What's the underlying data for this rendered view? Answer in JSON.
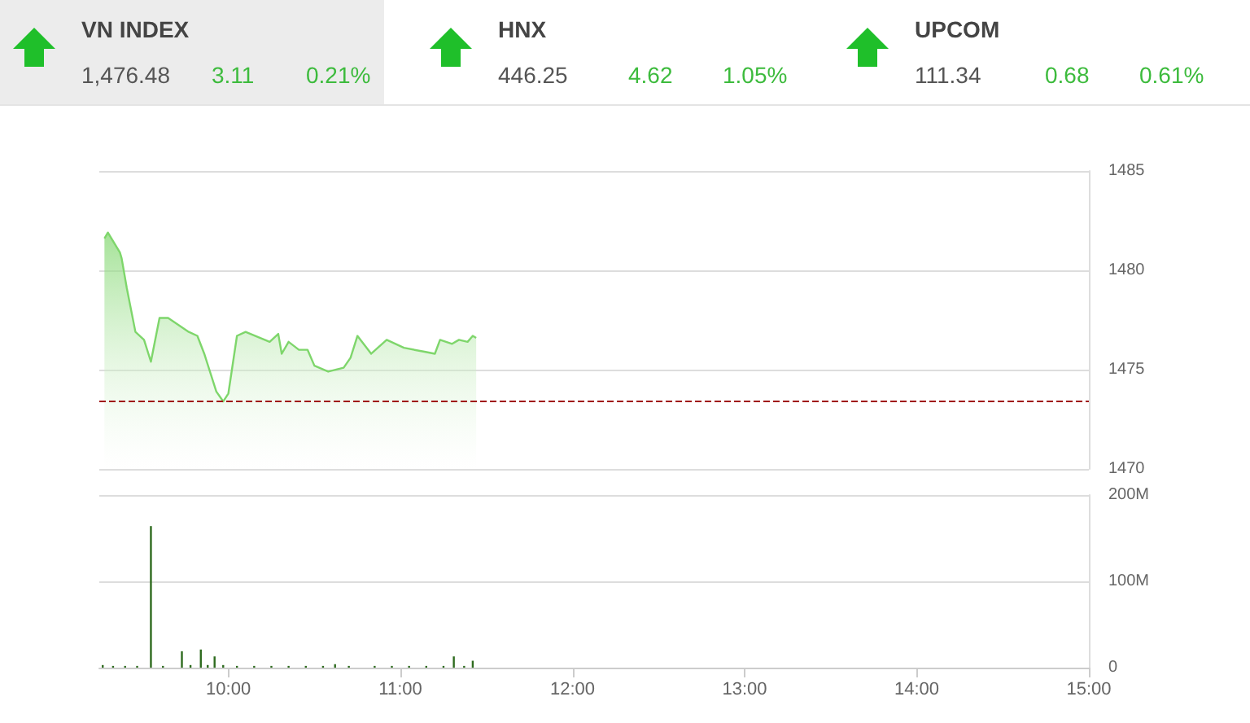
{
  "chart_data": [
    {
      "type": "other",
      "annotations": [
        "VN INDEX",
        "1,476.48",
        "3.11",
        "0.21%",
        "HNX",
        "446.25",
        "4.62",
        "1.05%",
        "UPCOM",
        "111.34",
        "0.68",
        "0.61%"
      ]
    },
    {
      "type": "area",
      "color": "#7ed66b",
      "tick_labels": "y",
      "grid": "y",
      "xlim": [
        9.25,
        15
      ],
      "ylim": [
        1470,
        1485
      ],
      "yticks": [
        1470,
        1475,
        1480,
        1485
      ],
      "x": [
        9.28,
        9.3,
        9.37,
        9.38,
        9.41,
        9.46,
        9.51,
        9.55,
        9.6,
        9.65,
        9.77,
        9.82,
        9.86,
        9.93,
        9.97,
        10.0,
        10.05,
        10.1,
        10.24,
        10.29,
        10.31,
        10.35,
        10.41,
        10.46,
        10.5,
        10.58,
        10.67,
        10.71,
        10.75,
        10.83,
        10.92,
        11.02,
        11.14,
        11.2,
        11.23,
        11.3,
        11.34,
        11.39,
        11.42,
        11.44
      ],
      "values": [
        1481.6,
        1481.9,
        1480.9,
        1480.6,
        1479.1,
        1476.9,
        1476.5,
        1475.4,
        1477.6,
        1477.6,
        1476.9,
        1476.7,
        1475.8,
        1473.9,
        1473.4,
        1473.8,
        1476.7,
        1476.9,
        1476.4,
        1476.8,
        1475.8,
        1476.4,
        1476.0,
        1476.0,
        1475.2,
        1474.9,
        1475.1,
        1475.6,
        1476.7,
        1475.8,
        1476.5,
        1476.1,
        1475.9,
        1475.8,
        1476.5,
        1476.3,
        1476.5,
        1476.4,
        1476.7,
        1476.6
      ],
      "ref_lines": [
        {
          "axis": "y",
          "value": 1473.4,
          "color": "#a01010",
          "line_style": "dashed"
        }
      ]
    },
    {
      "type": "bar",
      "color": "#2e6b1e",
      "grid": "y",
      "xlim": [
        9.25,
        15
      ],
      "xticks": [
        {
          "value": 10,
          "label": "10:00"
        },
        {
          "value": 11,
          "label": "11:00"
        },
        {
          "value": 12,
          "label": "12:00"
        },
        {
          "value": 13,
          "label": "13:00"
        },
        {
          "value": 14,
          "label": "14:00"
        },
        {
          "value": 15,
          "label": "15:00"
        }
      ],
      "ylim": [
        0,
        200
      ],
      "yticks": [
        0,
        {
          "value": 100,
          "label": "100M"
        },
        {
          "value": 200,
          "label": "200M"
        }
      ],
      "x": [
        9.27,
        9.33,
        9.4,
        9.47,
        9.55,
        9.62,
        9.73,
        9.78,
        9.84,
        9.88,
        9.92,
        9.97,
        10.05,
        10.15,
        10.25,
        10.35,
        10.45,
        10.55,
        10.62,
        10.7,
        10.85,
        10.95,
        11.05,
        11.15,
        11.25,
        11.31,
        11.37,
        11.42
      ],
      "values": [
        3,
        2,
        2,
        2,
        164,
        2,
        19,
        3,
        21,
        3,
        13,
        3,
        2,
        2,
        2,
        2,
        2,
        2,
        4,
        2,
        2,
        2,
        2,
        2,
        2,
        13,
        2,
        8
      ]
    }
  ]
}
